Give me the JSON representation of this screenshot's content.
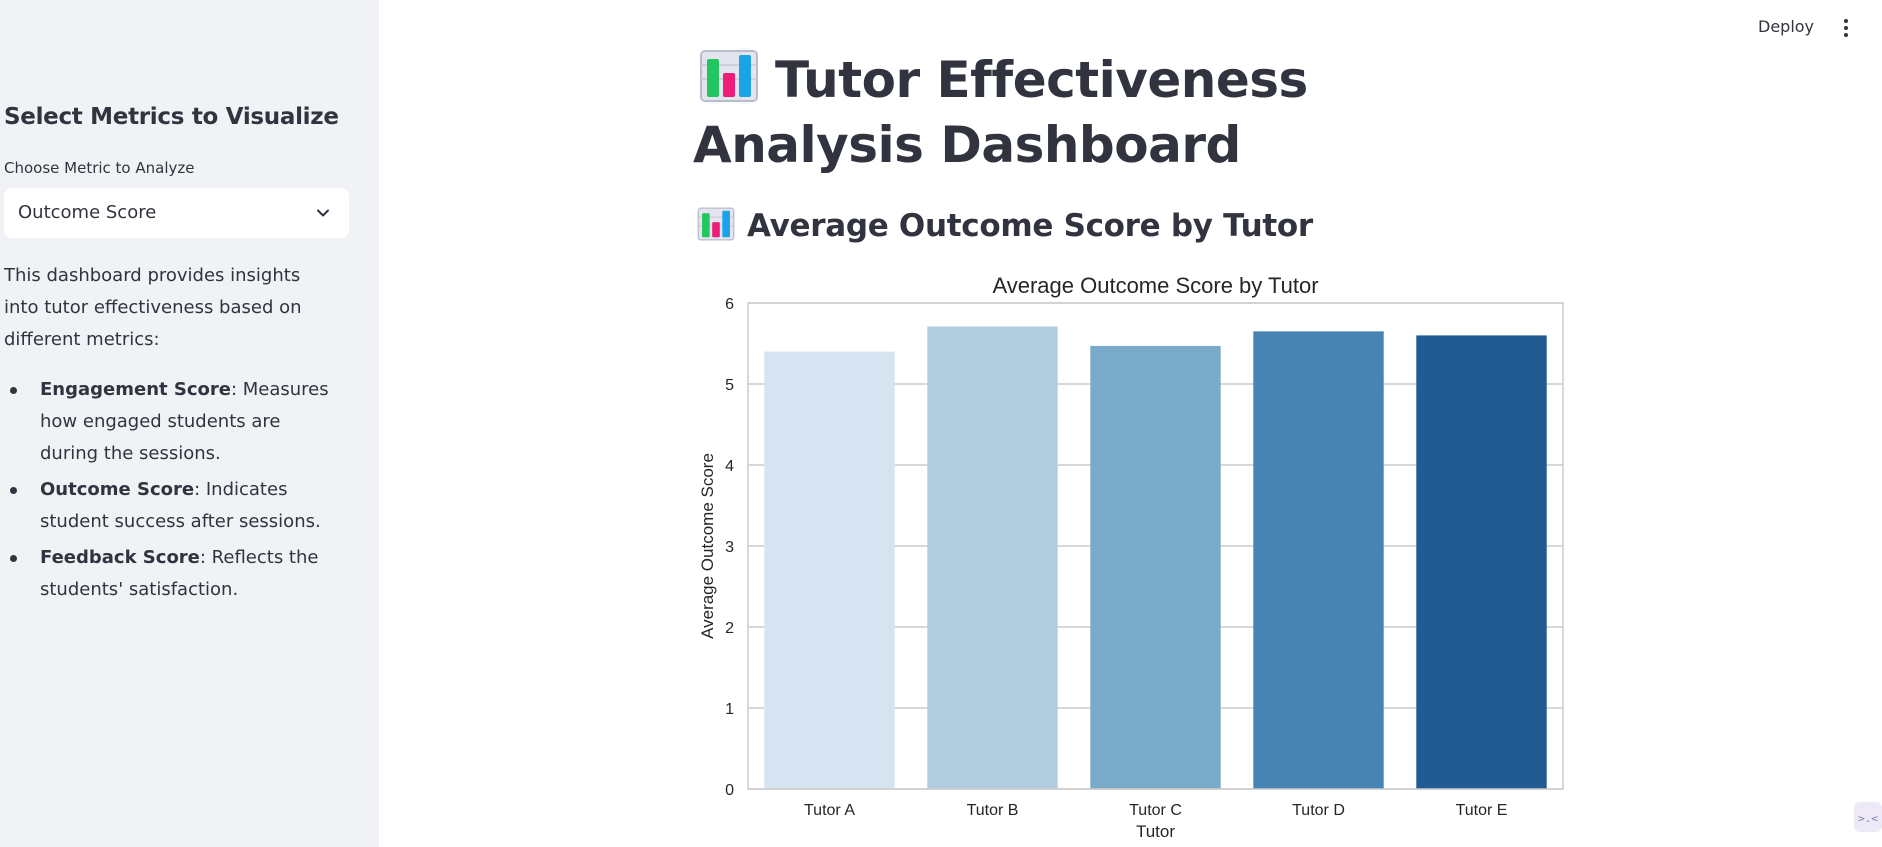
{
  "sidebar": {
    "heading": "Select Metrics to Visualize",
    "select_label": "Choose Metric to Analyze",
    "select_value": "Outcome Score",
    "description": "This dashboard provides insights into tutor effectiveness based on different metrics:",
    "metrics": [
      {
        "name": "Engagement Score",
        "text": ": Measures how engaged students are during the sessions."
      },
      {
        "name": "Outcome Score",
        "text": ": Indicates student success after sessions."
      },
      {
        "name": "Feedback Score",
        "text": ": Reflects the students' satisfaction."
      }
    ]
  },
  "header": {
    "deploy_label": "Deploy",
    "menu_icon": "kebab-menu-icon"
  },
  "main": {
    "title": "Tutor Effectiveness Analysis Dashboard",
    "title_icon": "bar-chart-icon",
    "subtitle": "Average Outcome Score by Tutor",
    "subtitle_icon": "bar-chart-icon"
  },
  "chart_data": {
    "type": "bar",
    "title": "Average Outcome Score by Tutor",
    "xlabel": "Tutor",
    "ylabel": "Average Outcome Score",
    "categories": [
      "Tutor A",
      "Tutor B",
      "Tutor C",
      "Tutor D",
      "Tutor E"
    ],
    "values": [
      5.4,
      5.71,
      5.47,
      5.65,
      5.6
    ],
    "ylim": [
      0,
      6
    ],
    "yticks": [
      0,
      1,
      2,
      3,
      4,
      5,
      6
    ],
    "grid": true,
    "colors": [
      "#d6e4f2",
      "#b2cde0",
      "#79aac9",
      "#4884b3",
      "#215b91"
    ]
  }
}
